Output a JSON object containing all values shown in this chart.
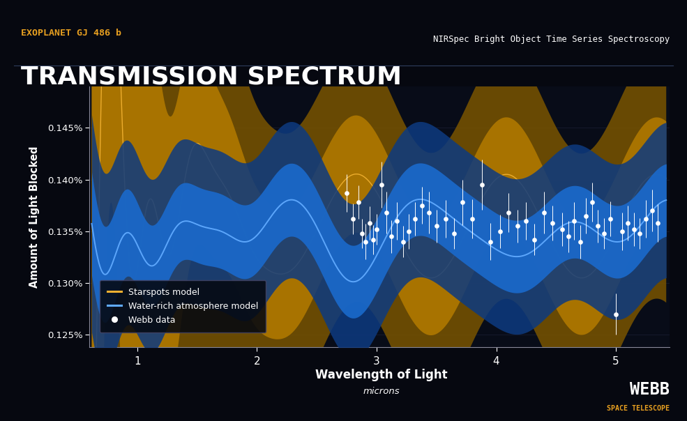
{
  "title_sub": "EXOPLANET GJ 486 b",
  "title_main": "TRANSMISSION SPECTRUM",
  "subtitle_right": "NIRSpec Bright Object Time Series Spectroscopy",
  "xlabel": "Wavelength of Light",
  "xlabel_sub": "microns",
  "ylabel": "Amount of Light Blocked",
  "xlim": [
    0.6,
    5.45
  ],
  "ylim": [
    0.001238,
    0.00149
  ],
  "ytick_vals": [
    0.00125,
    0.0013,
    0.00135,
    0.0014,
    0.00145
  ],
  "ytick_labels": [
    "0.125%",
    "0.130%",
    "0.135%",
    "0.140%",
    "0.145%"
  ],
  "xticks": [
    1,
    2,
    3,
    4,
    5
  ],
  "bg_color": "#060810",
  "plot_bg_color": "#080c18",
  "axis_color": "#888899",
  "text_color": "#ffffff",
  "title_sub_color": "#e8a020",
  "starspot_line_color": "#f0b030",
  "starspot_band1_color": "#b07800",
  "starspot_band2_color": "#7a5500",
  "water_line_color": "#60aaff",
  "water_band1_color": "#1a6acc",
  "water_band2_color": "#0d3a80",
  "data_color": "#ffffff",
  "legend_entries": [
    "Starspots model",
    "Water-rich atmosphere model",
    "Webb data"
  ],
  "webb_data_x": [
    2.75,
    2.8,
    2.85,
    2.88,
    2.91,
    2.94,
    2.97,
    3.0,
    3.04,
    3.08,
    3.12,
    3.17,
    3.22,
    3.27,
    3.32,
    3.38,
    3.44,
    3.5,
    3.58,
    3.65,
    3.72,
    3.8,
    3.88,
    3.95,
    4.03,
    4.1,
    4.18,
    4.25,
    4.32,
    4.4,
    4.47,
    4.55,
    4.6,
    4.65,
    4.7,
    4.75,
    4.8,
    4.85,
    4.9,
    4.95,
    5.0,
    5.05,
    5.1,
    5.15,
    5.2,
    5.25,
    5.3,
    5.35
  ],
  "webb_data_y": [
    0.001387,
    0.001362,
    0.001378,
    0.001348,
    0.00134,
    0.001358,
    0.001342,
    0.001352,
    0.001395,
    0.001368,
    0.001345,
    0.00136,
    0.00134,
    0.00135,
    0.001362,
    0.001375,
    0.001368,
    0.001355,
    0.001362,
    0.001348,
    0.001378,
    0.001362,
    0.001395,
    0.00134,
    0.00135,
    0.001368,
    0.001355,
    0.00136,
    0.001342,
    0.001368,
    0.001358,
    0.001352,
    0.001345,
    0.00136,
    0.00134,
    0.001365,
    0.001378,
    0.001355,
    0.001348,
    0.001362,
    0.00127,
    0.00135,
    0.001358,
    0.001352,
    0.001348,
    0.001362,
    0.00137,
    0.001358
  ],
  "webb_data_err": [
    1.8e-05,
    1.5e-05,
    1.6e-05,
    1.4e-05,
    1.7e-05,
    1.6e-05,
    1.4e-05,
    1.5e-05,
    2.2e-05,
    2e-05,
    1.6e-05,
    1.8e-05,
    1.5e-05,
    1.7e-05,
    1.6e-05,
    1.8e-05,
    2e-05,
    1.6e-05,
    1.8e-05,
    1.5e-05,
    2.2e-05,
    1.9e-05,
    2.4e-05,
    1.8e-05,
    1.6e-05,
    1.9e-05,
    1.6e-05,
    1.8e-05,
    1.5e-05,
    2e-05,
    1.7e-05,
    1.6e-05,
    1.5e-05,
    1.8e-05,
    1.6e-05,
    1.7e-05,
    1.9e-05,
    1.6e-05,
    1.5e-05,
    1.7e-05,
    2e-05,
    1.8e-05,
    1.7e-05,
    1.6e-05,
    1.5e-05,
    1.8e-05,
    2e-05,
    1.8e-05
  ]
}
